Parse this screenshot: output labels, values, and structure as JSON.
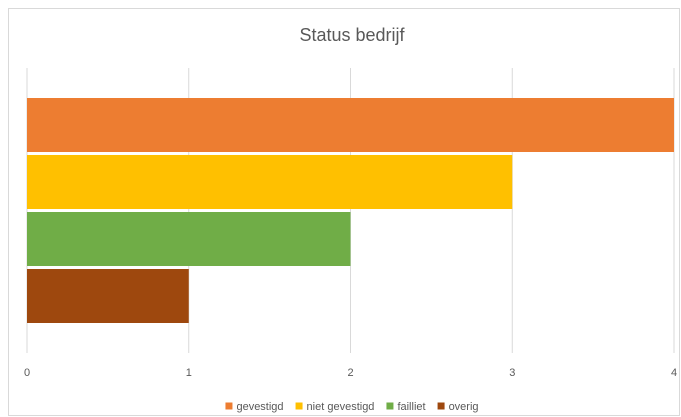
{
  "chart_data": {
    "type": "bar",
    "orientation": "horizontal",
    "title": "Status bedrijf",
    "xlim": [
      0,
      4
    ],
    "x_ticks": [
      "0",
      "1",
      "2",
      "3",
      "4"
    ],
    "grid": true,
    "legend_position": "bottom",
    "series": [
      {
        "name": "gevestigd",
        "value": 4,
        "color": "#ED7D31"
      },
      {
        "name": "niet gevestigd",
        "value": 3,
        "color": "#FFC000"
      },
      {
        "name": "failliet",
        "value": 2,
        "color": "#70AD47"
      },
      {
        "name": "overig",
        "value": 1,
        "color": "#9E480E"
      }
    ]
  }
}
